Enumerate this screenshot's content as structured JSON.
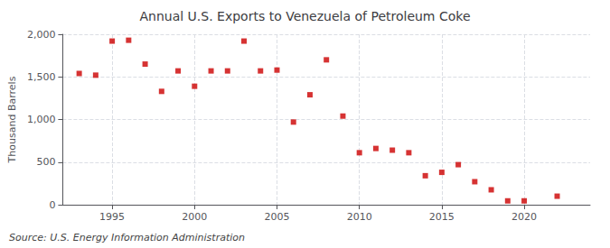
{
  "chart_data": {
    "type": "scatter",
    "title": "Annual U.S. Exports to Venezuela of Petroleum Coke",
    "ylabel": "Thousand Barrels",
    "annotation": "Source: U.S. Energy Information Administration",
    "x": [
      1993,
      1994,
      1995,
      1996,
      1997,
      1998,
      1999,
      2000,
      2001,
      2002,
      2003,
      2004,
      2005,
      2006,
      2007,
      2008,
      2009,
      2010,
      2011,
      2012,
      2013,
      2014,
      2015,
      2016,
      2017,
      2018,
      2019,
      2020,
      2022
    ],
    "values": [
      1540,
      1520,
      1920,
      1930,
      1650,
      1330,
      1570,
      1390,
      1570,
      1570,
      1920,
      1570,
      1580,
      970,
      1290,
      1700,
      1040,
      610,
      660,
      640,
      610,
      340,
      380,
      470,
      270,
      175,
      45,
      45,
      100
    ],
    "color": "#cc0000",
    "marker": "square",
    "xlim": [
      1992,
      2024
    ],
    "xticks": [
      1995,
      2000,
      2005,
      2010,
      2015,
      2020
    ],
    "ylim": [
      0,
      2000
    ],
    "yticks": [
      0,
      500,
      {
        "value": 1000,
        "label": "1,000"
      },
      {
        "value": 1500,
        "label": "1,500"
      },
      {
        "value": 2000,
        "label": "2,000"
      }
    ],
    "grid": true
  }
}
